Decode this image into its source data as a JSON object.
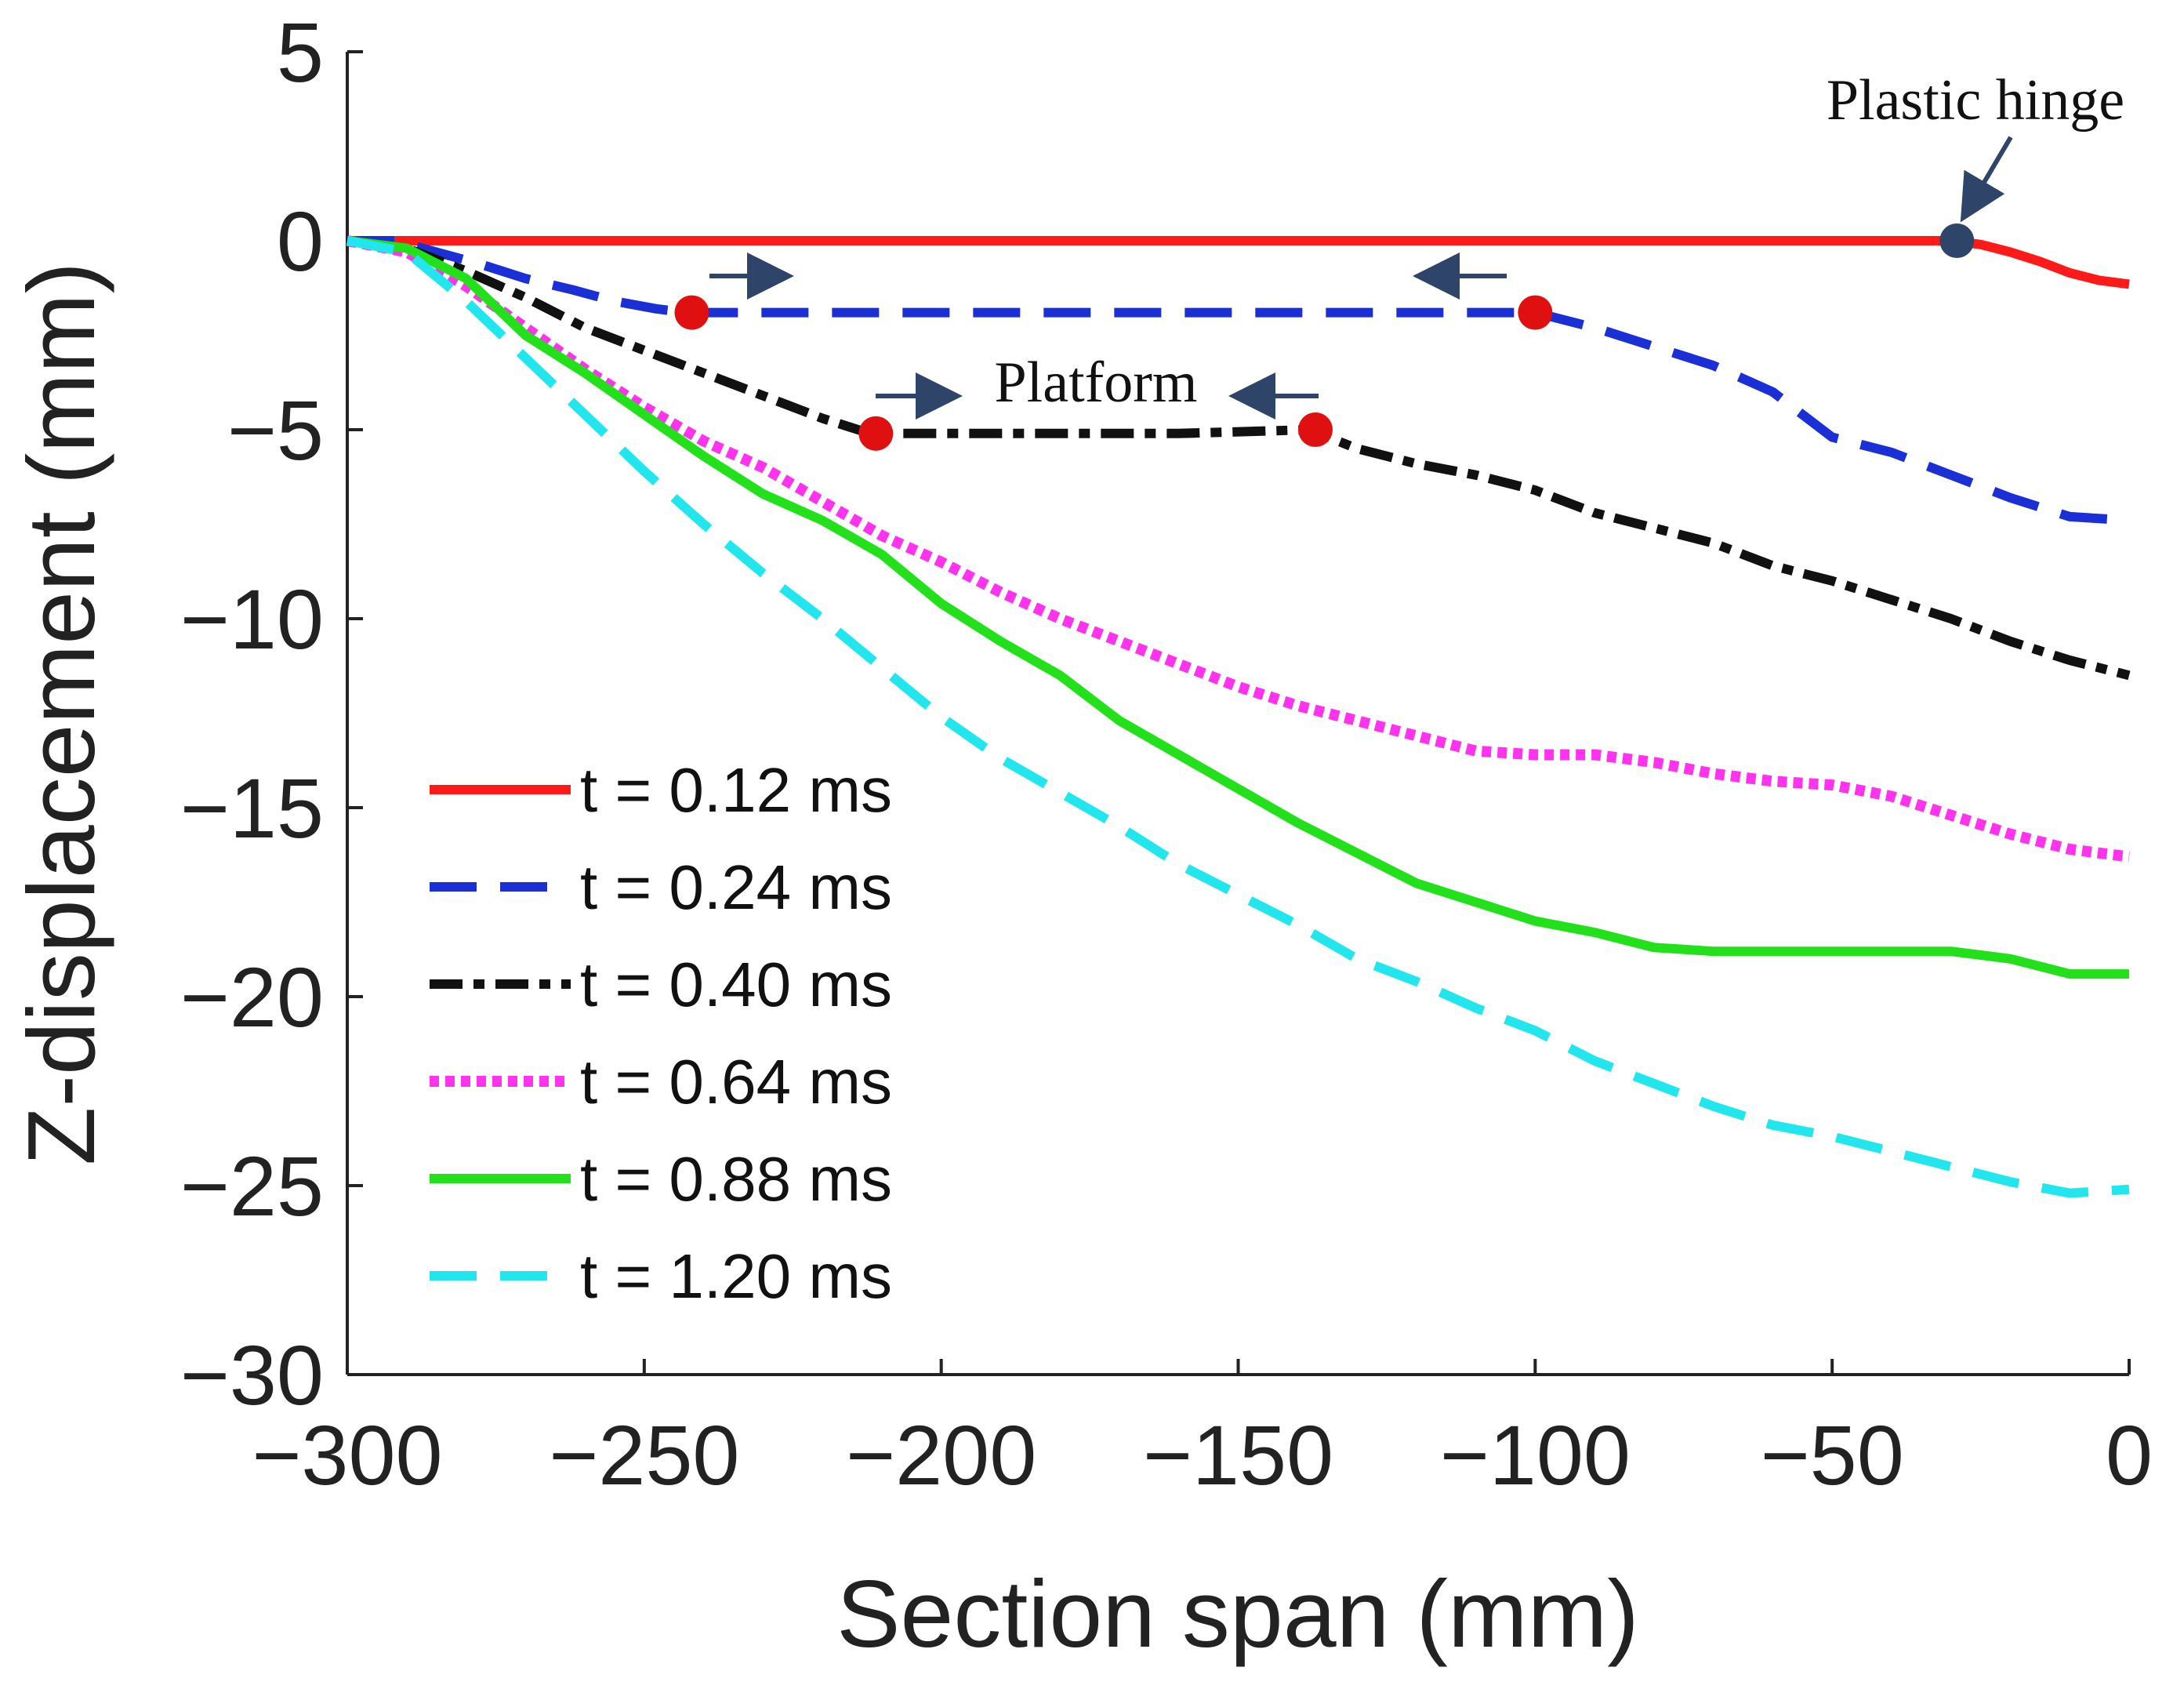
{
  "chart_data": {
    "type": "line",
    "xlabel": "Section span (mm)",
    "ylabel": "Z-displacement (mm)",
    "xlim": [
      -300,
      0
    ],
    "ylim": [
      -30,
      5
    ],
    "xticks": [
      -300,
      -250,
      -200,
      -150,
      -100,
      -50,
      0
    ],
    "yticks": [
      5,
      0,
      -5,
      -10,
      -15,
      -20,
      -25,
      -30
    ],
    "xtick_labels": [
      "−300",
      "−250",
      "−200",
      "−150",
      "−100",
      "−50",
      "0"
    ],
    "ytick_labels": [
      "5",
      "0",
      "−5",
      "−10",
      "−15",
      "−20",
      "−25",
      "−30"
    ],
    "legend_position": "bottom-left",
    "series": [
      {
        "name": "t = 0.12 ms",
        "color": "#ff1a1a",
        "style": "solid",
        "x": [
          -300,
          -280,
          -260,
          -240,
          -220,
          -200,
          -180,
          -160,
          -140,
          -120,
          -100,
          -80,
          -60,
          -40,
          -30,
          -25,
          -20,
          -15,
          -10,
          -5,
          0
        ],
        "y": [
          0,
          0,
          0,
          0,
          0,
          0,
          0,
          0,
          0,
          0,
          0,
          0,
          0,
          0,
          0,
          -0.1,
          -0.3,
          -0.55,
          -0.85,
          -1.05,
          -1.15
        ]
      },
      {
        "name": "t = 0.24 ms",
        "color": "#1a2fd6",
        "style": "dashed",
        "x": [
          -300,
          -292,
          -285,
          -278,
          -270,
          -262,
          -255,
          -248,
          -243,
          -220,
          -200,
          -180,
          -160,
          -140,
          -120,
          -100,
          -90,
          -80,
          -70,
          -60,
          -55,
          -50,
          -40,
          -30,
          -20,
          -10,
          0
        ],
        "y": [
          0,
          0,
          -0.3,
          -0.6,
          -1.0,
          -1.3,
          -1.6,
          -1.8,
          -1.9,
          -1.9,
          -1.9,
          -1.9,
          -1.9,
          -1.9,
          -1.9,
          -1.9,
          -2.3,
          -2.8,
          -3.3,
          -4.0,
          -4.6,
          -5.2,
          -5.6,
          -6.2,
          -6.8,
          -7.3,
          -7.4
        ]
      },
      {
        "name": "t = 0.40 ms",
        "color": "#111111",
        "style": "dashdot",
        "x": [
          -300,
          -290,
          -280,
          -270,
          -260,
          -250,
          -240,
          -230,
          -220,
          -212,
          -200,
          -180,
          -160,
          -138,
          -130,
          -120,
          -110,
          -100,
          -90,
          -80,
          -70,
          -60,
          -50,
          -40,
          -30,
          -20,
          -10,
          0
        ],
        "y": [
          0,
          -0.2,
          -0.8,
          -1.5,
          -2.3,
          -2.9,
          -3.5,
          -4.1,
          -4.7,
          -5.1,
          -5.1,
          -5.1,
          -5.1,
          -5.0,
          -5.5,
          -5.9,
          -6.2,
          -6.6,
          -7.2,
          -7.6,
          -8.0,
          -8.6,
          -9.0,
          -9.5,
          -10.0,
          -10.6,
          -11.1,
          -11.5
        ]
      },
      {
        "name": "t = 0.64 ms",
        "color": "#ff33ee",
        "style": "dotted",
        "x": [
          -300,
          -290,
          -280,
          -270,
          -260,
          -250,
          -240,
          -230,
          -220,
          -210,
          -200,
          -190,
          -180,
          -170,
          -160,
          -150,
          -140,
          -130,
          -120,
          -110,
          -100,
          -90,
          -80,
          -70,
          -60,
          -50,
          -40,
          -30,
          -20,
          -10,
          0
        ],
        "y": [
          0,
          -0.3,
          -1.2,
          -2.3,
          -3.4,
          -4.4,
          -5.3,
          -6.0,
          -6.9,
          -7.8,
          -8.5,
          -9.3,
          -10.0,
          -10.6,
          -11.2,
          -11.8,
          -12.3,
          -12.7,
          -13.1,
          -13.5,
          -13.6,
          -13.6,
          -13.8,
          -14.1,
          -14.3,
          -14.4,
          -14.7,
          -15.2,
          -15.7,
          -16.1,
          -16.3
        ]
      },
      {
        "name": "t = 0.88 ms",
        "color": "#22e01a",
        "style": "solid",
        "x": [
          -300,
          -290,
          -280,
          -270,
          -260,
          -250,
          -240,
          -230,
          -220,
          -210,
          -200,
          -190,
          -180,
          -170,
          -160,
          -150,
          -140,
          -130,
          -120,
          -110,
          -100,
          -90,
          -80,
          -70,
          -60,
          -50,
          -40,
          -30,
          -20,
          -10,
          0
        ],
        "y": [
          0,
          -0.2,
          -1.0,
          -2.5,
          -3.5,
          -4.6,
          -5.7,
          -6.7,
          -7.4,
          -8.3,
          -9.6,
          -10.6,
          -11.5,
          -12.7,
          -13.6,
          -14.5,
          -15.4,
          -16.2,
          -17.0,
          -17.5,
          -18.0,
          -18.3,
          -18.7,
          -18.8,
          -18.8,
          -18.8,
          -18.8,
          -18.8,
          -19.0,
          -19.4,
          -19.4
        ]
      },
      {
        "name": "t = 1.20 ms",
        "color": "#22e6ee",
        "style": "dashed",
        "x": [
          -300,
          -290,
          -280,
          -270,
          -260,
          -250,
          -240,
          -230,
          -220,
          -210,
          -200,
          -190,
          -180,
          -170,
          -160,
          -150,
          -140,
          -130,
          -120,
          -110,
          -100,
          -90,
          -80,
          -70,
          -60,
          -50,
          -40,
          -30,
          -20,
          -10,
          0
        ],
        "y": [
          0,
          -0.3,
          -1.6,
          -3.1,
          -4.6,
          -6.1,
          -7.5,
          -8.8,
          -10.0,
          -11.3,
          -12.6,
          -13.7,
          -14.6,
          -15.5,
          -16.5,
          -17.3,
          -18.1,
          -19.0,
          -19.6,
          -20.3,
          -20.9,
          -21.7,
          -22.3,
          -22.9,
          -23.4,
          -23.7,
          -24.1,
          -24.5,
          -24.9,
          -25.2,
          -25.1
        ]
      }
    ],
    "markers": [
      {
        "name": "platform-start-024",
        "x": -242,
        "y": -1.9,
        "color": "#e01010"
      },
      {
        "name": "platform-end-024",
        "x": -100,
        "y": -1.9,
        "color": "#e01010"
      },
      {
        "name": "platform-start-040",
        "x": -211,
        "y": -5.1,
        "color": "#e01010"
      },
      {
        "name": "platform-end-040",
        "x": -137,
        "y": -5.0,
        "color": "#e01010"
      },
      {
        "name": "plastic-hinge-point",
        "x": -29,
        "y": 0,
        "color": "#2e4468"
      }
    ],
    "annotations": [
      {
        "text": "Plastic hinge",
        "x": -29,
        "y": 0
      },
      {
        "text": "Platform",
        "x": -175,
        "y": -5.1
      }
    ]
  }
}
